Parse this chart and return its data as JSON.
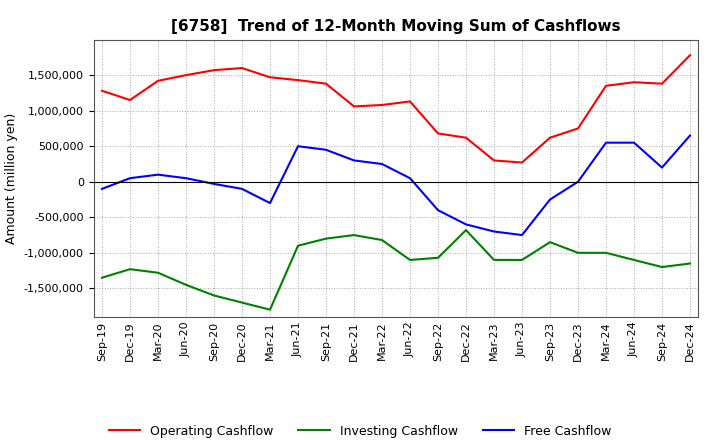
{
  "title": "[6758]  Trend of 12-Month Moving Sum of Cashflows",
  "ylabel": "Amount (million yen)",
  "background_color": "#ffffff",
  "plot_background": "#ffffff",
  "grid_color": "#aaaaaa",
  "x_labels": [
    "Sep-19",
    "Dec-19",
    "Mar-20",
    "Jun-20",
    "Sep-20",
    "Dec-20",
    "Mar-21",
    "Jun-21",
    "Sep-21",
    "Dec-21",
    "Mar-22",
    "Jun-22",
    "Sep-22",
    "Dec-22",
    "Mar-23",
    "Jun-23",
    "Sep-23",
    "Dec-23",
    "Mar-24",
    "Jun-24",
    "Sep-24",
    "Dec-24"
  ],
  "operating": [
    1280000,
    1150000,
    1420000,
    1500000,
    1570000,
    1600000,
    1470000,
    1430000,
    1380000,
    1060000,
    1080000,
    1130000,
    680000,
    620000,
    300000,
    270000,
    620000,
    750000,
    1350000,
    1400000,
    1380000,
    1780000
  ],
  "investing": [
    -1350000,
    -1230000,
    -1280000,
    -1450000,
    -1600000,
    -1700000,
    -1800000,
    -900000,
    -800000,
    -750000,
    -820000,
    -1100000,
    -1070000,
    -680000,
    -1100000,
    -1100000,
    -850000,
    -1000000,
    -1000000,
    -1100000,
    -1200000,
    -1150000
  ],
  "free": [
    -100000,
    50000,
    100000,
    50000,
    -30000,
    -100000,
    -300000,
    500000,
    450000,
    300000,
    250000,
    50000,
    -400000,
    -600000,
    -700000,
    -750000,
    -250000,
    0,
    550000,
    550000,
    200000,
    650000
  ],
  "operating_color": "#ff0000",
  "investing_color": "#008000",
  "free_color": "#0000ff",
  "ylim": [
    -1900000,
    2000000
  ],
  "yticks": [
    -1500000,
    -1000000,
    -500000,
    0,
    500000,
    1000000,
    1500000
  ],
  "title_fontsize": 11,
  "ylabel_fontsize": 9,
  "tick_fontsize": 8,
  "legend_fontsize": 9,
  "legend_labels": [
    "Operating Cashflow",
    "Investing Cashflow",
    "Free Cashflow"
  ]
}
